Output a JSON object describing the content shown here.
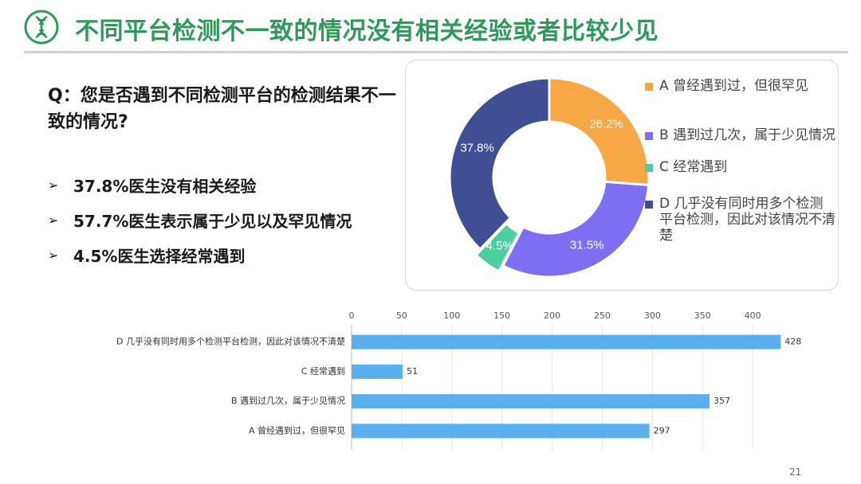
{
  "slide": {
    "title": "不同平台检测不一致的情况没有相关经验或者比较少见",
    "question": "Q：您是否遇到不同检测平台的检测结果不一致的情况?",
    "bullets": [
      "37.8%医生没有相关经验",
      "57.7%医生表示属于少见以及罕见情况",
      "4.5%医生选择经常遇到"
    ],
    "page_number": "21",
    "logo_icon": "dna-icon",
    "bullet_icon": "arrow-right-icon",
    "colors": {
      "title": "#2e9a5a",
      "bar": "#5aafee",
      "slice_a": "#f8a746",
      "slice_b": "#7e6ef2",
      "slice_c": "#4ccfa0",
      "slice_d": "#3f4f94"
    }
  },
  "chart_data": [
    {
      "type": "pie",
      "variant": "donut",
      "categories": [
        "A 曾经遇到过，但很罕见",
        "B 遇到过几次，属于少见情况",
        "C 经常遇到",
        "D 几乎没有同时用多个检测平台检测，因此对该情况不清楚"
      ],
      "values": [
        26.2,
        31.5,
        4.5,
        37.8
      ],
      "data_labels": [
        "26.2%",
        "31.5%",
        "4.5%",
        "37.8%"
      ],
      "legend_position": "right",
      "colors": [
        "#f8a746",
        "#7e6ef2",
        "#4ccfa0",
        "#3f4f94"
      ]
    },
    {
      "type": "bar",
      "orientation": "horizontal",
      "categories": [
        "D 几乎没有同时用多个检测平台检测，因此对该情况不清楚",
        "C 经常遇到",
        "B 遇到过几次，属于少见情况",
        "A 曾经遇到过，但很罕见"
      ],
      "values": [
        428,
        51,
        357,
        297
      ],
      "xlim": [
        0,
        430
      ],
      "x_ticks": [
        0,
        50,
        100,
        150,
        200,
        250,
        300,
        350,
        400
      ],
      "x_axis_position": "top",
      "grid": true,
      "color": "#5aafee"
    }
  ]
}
